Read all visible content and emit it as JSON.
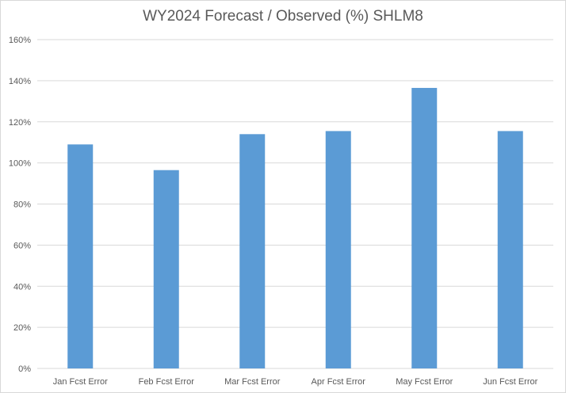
{
  "chart_data": {
    "type": "bar",
    "title": "WY2024 Forecast / Observed (%) SHLM8",
    "categories": [
      "Jan Fcst Error",
      "Feb Fcst Error",
      "Mar Fcst Error",
      "Apr Fcst Error",
      "May Fcst Error",
      "Jun Fcst Error"
    ],
    "series": [
      {
        "values": [
          109,
          96.5,
          114,
          115.5,
          136.5,
          115.5
        ]
      }
    ],
    "ylim": [
      0,
      160
    ],
    "yticks": [
      0,
      20,
      40,
      60,
      80,
      100,
      120,
      140,
      160
    ],
    "ytick_labels": [
      "0%",
      "20%",
      "40%",
      "60%",
      "80%",
      "100%",
      "120%",
      "140%",
      "160%"
    ],
    "xlabel": "",
    "ylabel": "",
    "grid": true,
    "legend": "none",
    "colors": {
      "bar": "#5b9bd5",
      "grid": "#d9d9d9",
      "text": "#595959"
    }
  }
}
